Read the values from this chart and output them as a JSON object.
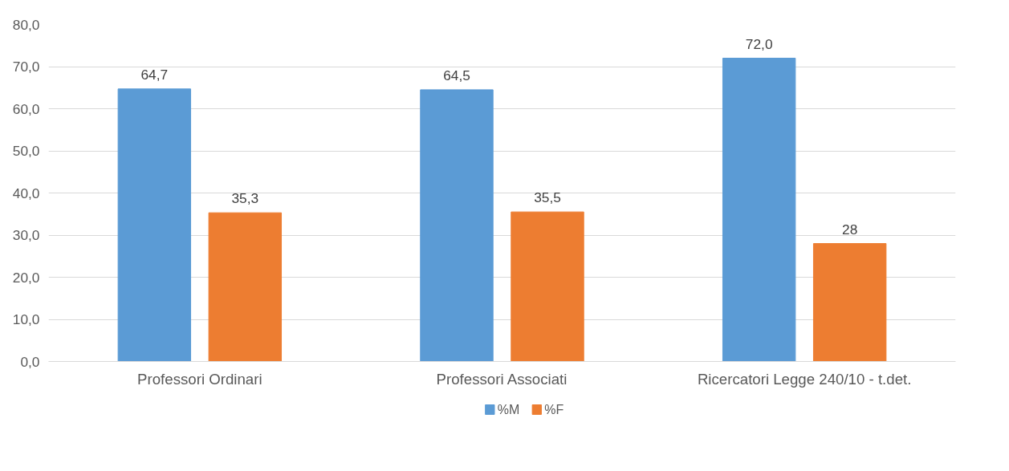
{
  "chart_data": {
    "type": "bar",
    "categories": [
      "Professori Ordinari",
      "Professori Associati",
      "Ricercatori Legge 240/10 - t.det."
    ],
    "series": [
      {
        "name": "%M",
        "color": "#5b9bd5",
        "values": [
          64.7,
          64.5,
          72.0
        ],
        "value_labels": [
          "64,7",
          "64,5",
          "72,0"
        ]
      },
      {
        "name": "%F",
        "color": "#ed7d31",
        "values": [
          35.3,
          35.5,
          28
        ],
        "value_labels": [
          "35,3",
          "35,5",
          "28"
        ]
      }
    ],
    "ylim": [
      0,
      80
    ],
    "yticks": [
      {
        "value": 0,
        "label": "0,0"
      },
      {
        "value": 10,
        "label": "10,0"
      },
      {
        "value": 20,
        "label": "20,0"
      },
      {
        "value": 30,
        "label": "30,0"
      },
      {
        "value": 40,
        "label": "40,0"
      },
      {
        "value": 50,
        "label": "50,0"
      },
      {
        "value": 60,
        "label": "60,0"
      },
      {
        "value": 70,
        "label": "70,0"
      },
      {
        "value": 80,
        "label": "80,0"
      }
    ],
    "grid": "y",
    "legend": "bottom"
  }
}
